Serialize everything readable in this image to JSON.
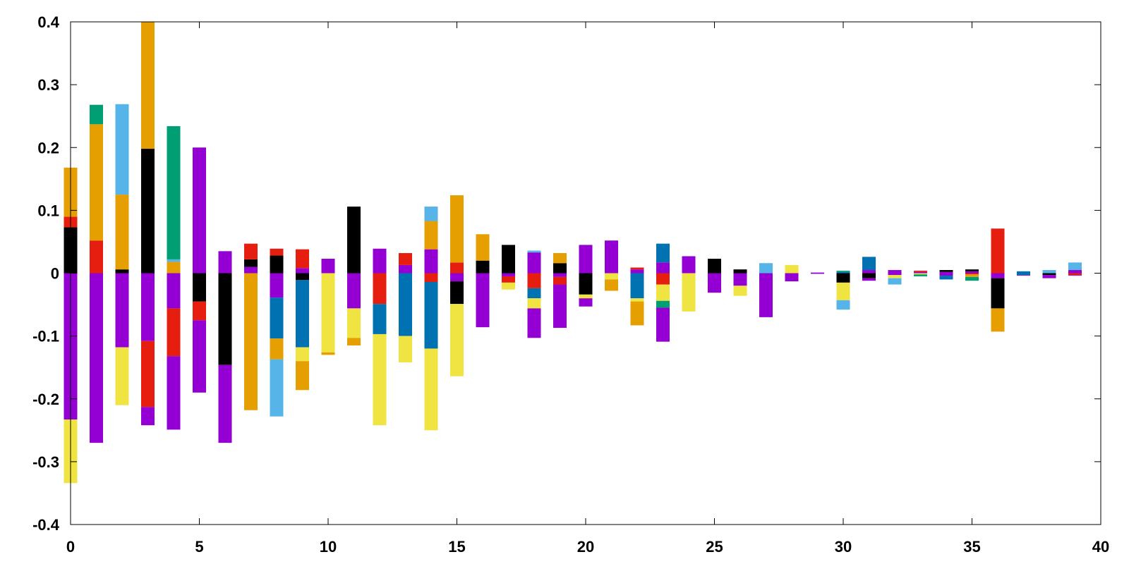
{
  "chart_data": {
    "type": "bar",
    "stacked": true,
    "diverging": true,
    "xlim": [
      0,
      40
    ],
    "ylim": [
      -0.4,
      0.4
    ],
    "x_ticks": [
      0,
      5,
      10,
      15,
      20,
      25,
      30,
      35,
      40
    ],
    "y_ticks": [
      -0.4,
      -0.3,
      -0.2,
      -0.1,
      0,
      0.1,
      0.2,
      0.3,
      0.4
    ],
    "x_tick_labels": [
      "0",
      "5",
      "10",
      "15",
      "20",
      "25",
      "30",
      "35",
      "40"
    ],
    "y_tick_labels": [
      "-0.4",
      "-0.3",
      "-0.2",
      "-0.1",
      "0",
      "0.1",
      "0.2",
      "0.3",
      "0.4"
    ],
    "grid": false,
    "legend": "none",
    "colors": {
      "purple": "#9400d3",
      "green": "#009e73",
      "skyblue": "#56b4e9",
      "orange": "#e69f00",
      "yellow": "#f0e442",
      "blue": "#0072b2",
      "red": "#e51e10",
      "black": "#000000"
    },
    "bars": [
      {
        "x": 0,
        "segments": [
          [
            "black",
            0,
            0.073
          ],
          [
            "red",
            0.073,
            0.09
          ],
          [
            "orange",
            0.09,
            0.168
          ],
          [
            "purple",
            0,
            -0.233
          ],
          [
            "yellow",
            -0.233,
            -0.334
          ]
        ]
      },
      {
        "x": 1,
        "segments": [
          [
            "red",
            0,
            0.052
          ],
          [
            "orange",
            0.052,
            0.237
          ],
          [
            "green",
            0.237,
            0.268
          ],
          [
            "purple",
            0,
            -0.27
          ]
        ]
      },
      {
        "x": 2,
        "segments": [
          [
            "black",
            0,
            0.006
          ],
          [
            "orange",
            0.006,
            0.125
          ],
          [
            "skyblue",
            0.125,
            0.269
          ],
          [
            "purple",
            0,
            -0.118
          ],
          [
            "yellow",
            -0.118,
            -0.21
          ]
        ]
      },
      {
        "x": 3,
        "segments": [
          [
            "black",
            0,
            0.198
          ],
          [
            "orange",
            0.198,
            0.4
          ],
          [
            "purple",
            0,
            -0.108
          ],
          [
            "red",
            -0.108,
            -0.213
          ],
          [
            "purple",
            -0.213,
            -0.242
          ]
        ]
      },
      {
        "x": 4,
        "segments": [
          [
            "orange",
            0,
            0.018
          ],
          [
            "skyblue",
            0.018,
            0.022
          ],
          [
            "green",
            0.022,
            0.234
          ],
          [
            "purple",
            0,
            -0.056
          ],
          [
            "red",
            -0.056,
            -0.132
          ],
          [
            "purple",
            -0.132,
            -0.249
          ]
        ]
      },
      {
        "x": 5,
        "segments": [
          [
            "purple",
            0,
            0.2
          ],
          [
            "black",
            0,
            -0.045
          ],
          [
            "red",
            -0.045,
            -0.075
          ],
          [
            "purple",
            -0.075,
            -0.19
          ]
        ]
      },
      {
        "x": 6,
        "segments": [
          [
            "purple",
            0,
            0.035
          ],
          [
            "black",
            0,
            -0.146
          ],
          [
            "purple",
            -0.146,
            -0.27
          ]
        ]
      },
      {
        "x": 7,
        "segments": [
          [
            "purple",
            0,
            0.01
          ],
          [
            "black",
            0.01,
            0.022
          ],
          [
            "red",
            0.022,
            0.047
          ],
          [
            "orange",
            0,
            -0.218
          ]
        ]
      },
      {
        "x": 8,
        "segments": [
          [
            "black",
            0,
            0.028
          ],
          [
            "red",
            0.028,
            0.039
          ],
          [
            "purple",
            0,
            -0.039
          ],
          [
            "blue",
            -0.039,
            -0.104
          ],
          [
            "orange",
            -0.104,
            -0.137
          ],
          [
            "skyblue",
            -0.137,
            -0.228
          ]
        ]
      },
      {
        "x": 9,
        "segments": [
          [
            "purple",
            0,
            0.008
          ],
          [
            "red",
            0.008,
            0.038
          ],
          [
            "black",
            0,
            -0.011
          ],
          [
            "blue",
            -0.011,
            -0.118
          ],
          [
            "yellow",
            -0.118,
            -0.14
          ],
          [
            "orange",
            -0.14,
            -0.186
          ]
        ]
      },
      {
        "x": 10,
        "segments": [
          [
            "purple",
            0,
            0.023
          ],
          [
            "yellow",
            0,
            -0.126
          ],
          [
            "orange",
            -0.126,
            -0.13
          ]
        ]
      },
      {
        "x": 11,
        "segments": [
          [
            "black",
            0,
            0.106
          ],
          [
            "purple",
            0,
            -0.056
          ],
          [
            "yellow",
            -0.056,
            -0.103
          ],
          [
            "orange",
            -0.103,
            -0.115
          ]
        ]
      },
      {
        "x": 12,
        "segments": [
          [
            "purple",
            0,
            0.039
          ],
          [
            "red",
            0,
            -0.049
          ],
          [
            "blue",
            -0.049,
            -0.097
          ],
          [
            "yellow",
            -0.097,
            -0.242
          ]
        ]
      },
      {
        "x": 13,
        "segments": [
          [
            "purple",
            0,
            0.013
          ],
          [
            "red",
            0.013,
            0.032
          ],
          [
            "blue",
            0,
            -0.1
          ],
          [
            "yellow",
            -0.1,
            -0.142
          ]
        ]
      },
      {
        "x": 14,
        "segments": [
          [
            "purple",
            0,
            0.038
          ],
          [
            "orange",
            0.038,
            0.083
          ],
          [
            "skyblue",
            0.083,
            0.106
          ],
          [
            "red",
            0,
            -0.014
          ],
          [
            "blue",
            -0.014,
            -0.12
          ],
          [
            "yellow",
            -0.12,
            -0.25
          ]
        ]
      },
      {
        "x": 15,
        "segments": [
          [
            "red",
            0,
            0.017
          ],
          [
            "orange",
            0.017,
            0.124
          ],
          [
            "purple",
            0,
            -0.013
          ],
          [
            "black",
            -0.013,
            -0.049
          ],
          [
            "yellow",
            -0.049,
            -0.164
          ]
        ]
      },
      {
        "x": 16,
        "segments": [
          [
            "black",
            0,
            0.02
          ],
          [
            "orange",
            0.02,
            0.062
          ],
          [
            "purple",
            0,
            -0.086
          ]
        ]
      },
      {
        "x": 17,
        "segments": [
          [
            "black",
            0,
            0.045
          ],
          [
            "purple",
            0,
            -0.005
          ],
          [
            "red",
            -0.005,
            -0.015
          ],
          [
            "yellow",
            -0.015,
            -0.026
          ]
        ]
      },
      {
        "x": 18,
        "segments": [
          [
            "purple",
            0,
            0.033
          ],
          [
            "skyblue",
            0.033,
            0.036
          ],
          [
            "red",
            0,
            -0.024
          ],
          [
            "blue",
            -0.024,
            -0.04
          ],
          [
            "yellow",
            -0.04,
            -0.056
          ],
          [
            "purple",
            -0.056,
            -0.103
          ]
        ]
      },
      {
        "x": 19,
        "segments": [
          [
            "black",
            0,
            0.016
          ],
          [
            "orange",
            0.016,
            0.032
          ],
          [
            "purple",
            0,
            -0.006
          ],
          [
            "red",
            -0.006,
            -0.018
          ],
          [
            "purple",
            -0.018,
            -0.087
          ]
        ]
      },
      {
        "x": 20,
        "segments": [
          [
            "purple",
            0,
            0.045
          ],
          [
            "black",
            0,
            -0.034
          ],
          [
            "yellow",
            -0.034,
            -0.04
          ],
          [
            "purple",
            -0.04,
            -0.053
          ]
        ]
      },
      {
        "x": 21,
        "segments": [
          [
            "purple",
            0,
            0.052
          ],
          [
            "yellow",
            0,
            -0.01
          ],
          [
            "orange",
            -0.01,
            -0.028
          ]
        ]
      },
      {
        "x": 22,
        "segments": [
          [
            "purple",
            0,
            0.006
          ],
          [
            "red",
            0.006,
            0.009
          ],
          [
            "blue",
            0,
            -0.04
          ],
          [
            "yellow",
            -0.04,
            -0.045
          ],
          [
            "orange",
            -0.045,
            -0.083
          ]
        ]
      },
      {
        "x": 23,
        "segments": [
          [
            "purple",
            0,
            0.017
          ],
          [
            "blue",
            0.017,
            0.047
          ],
          [
            "red",
            0,
            -0.018
          ],
          [
            "yellow",
            -0.018,
            -0.044
          ],
          [
            "green",
            -0.044,
            -0.055
          ],
          [
            "purple",
            -0.055,
            -0.109
          ]
        ]
      },
      {
        "x": 24,
        "segments": [
          [
            "purple",
            0,
            0.027
          ],
          [
            "yellow",
            0,
            -0.061
          ]
        ]
      },
      {
        "x": 25,
        "segments": [
          [
            "black",
            0,
            0.023
          ],
          [
            "purple",
            0,
            -0.031
          ]
        ]
      },
      {
        "x": 26,
        "segments": [
          [
            "black",
            0,
            0.006
          ],
          [
            "purple",
            0,
            -0.02
          ],
          [
            "yellow",
            -0.02,
            -0.036
          ]
        ]
      },
      {
        "x": 27,
        "segments": [
          [
            "skyblue",
            0,
            0.016
          ],
          [
            "purple",
            0,
            -0.07
          ]
        ]
      },
      {
        "x": 28,
        "segments": [
          [
            "yellow",
            0,
            0.013
          ],
          [
            "purple",
            0,
            -0.013
          ]
        ]
      },
      {
        "x": 29,
        "segments": [
          [
            "purple",
            0,
            0.001
          ],
          [
            "purple",
            0,
            -0.001
          ]
        ]
      },
      {
        "x": 30,
        "segments": [
          [
            "blue",
            0,
            0.002
          ],
          [
            "green",
            0.002,
            0.004
          ],
          [
            "black",
            0,
            -0.015
          ],
          [
            "yellow",
            -0.015,
            -0.043
          ],
          [
            "skyblue",
            -0.043,
            -0.058
          ]
        ]
      },
      {
        "x": 31,
        "segments": [
          [
            "purple",
            0,
            0.005
          ],
          [
            "blue",
            0.005,
            0.026
          ],
          [
            "black",
            0,
            -0.008
          ],
          [
            "purple",
            -0.008,
            -0.012
          ]
        ]
      },
      {
        "x": 32,
        "segments": [
          [
            "purple",
            0,
            0.005
          ],
          [
            "purple",
            0,
            -0.003
          ],
          [
            "yellow",
            -0.003,
            -0.008
          ],
          [
            "skyblue",
            -0.008,
            -0.018
          ]
        ]
      },
      {
        "x": 33,
        "segments": [
          [
            "purple",
            0,
            0.002
          ],
          [
            "red",
            0.002,
            0.004
          ],
          [
            "yellow",
            0,
            -0.002
          ],
          [
            "green",
            -0.002,
            -0.005
          ]
        ]
      },
      {
        "x": 34,
        "segments": [
          [
            "purple",
            0,
            0.002
          ],
          [
            "black",
            0.002,
            0.005
          ],
          [
            "purple",
            0,
            -0.004
          ],
          [
            "blue",
            -0.004,
            -0.01
          ]
        ]
      },
      {
        "x": 35,
        "segments": [
          [
            "purple",
            0,
            0.003
          ],
          [
            "black",
            0.003,
            0.006
          ],
          [
            "red",
            0,
            -0.002
          ],
          [
            "orange",
            -0.002,
            -0.006
          ],
          [
            "green",
            -0.006,
            -0.012
          ]
        ]
      },
      {
        "x": 36,
        "segments": [
          [
            "red",
            0,
            0.071
          ],
          [
            "purple",
            0,
            -0.008
          ],
          [
            "black",
            -0.008,
            -0.056
          ],
          [
            "orange",
            -0.056,
            -0.093
          ]
        ]
      },
      {
        "x": 37,
        "segments": [
          [
            "blue",
            0,
            0.003
          ],
          [
            "blue",
            0,
            -0.003
          ],
          [
            "purple",
            -0.003,
            -0.004
          ]
        ]
      },
      {
        "x": 38,
        "segments": [
          [
            "skyblue",
            0,
            0.005
          ],
          [
            "black",
            0,
            -0.003
          ],
          [
            "purple",
            -0.003,
            -0.008
          ]
        ]
      },
      {
        "x": 39,
        "segments": [
          [
            "purple",
            0,
            0.005
          ],
          [
            "skyblue",
            0.005,
            0.017
          ],
          [
            "red",
            0,
            -0.003
          ],
          [
            "purple",
            -0.003,
            -0.004
          ]
        ]
      }
    ]
  }
}
